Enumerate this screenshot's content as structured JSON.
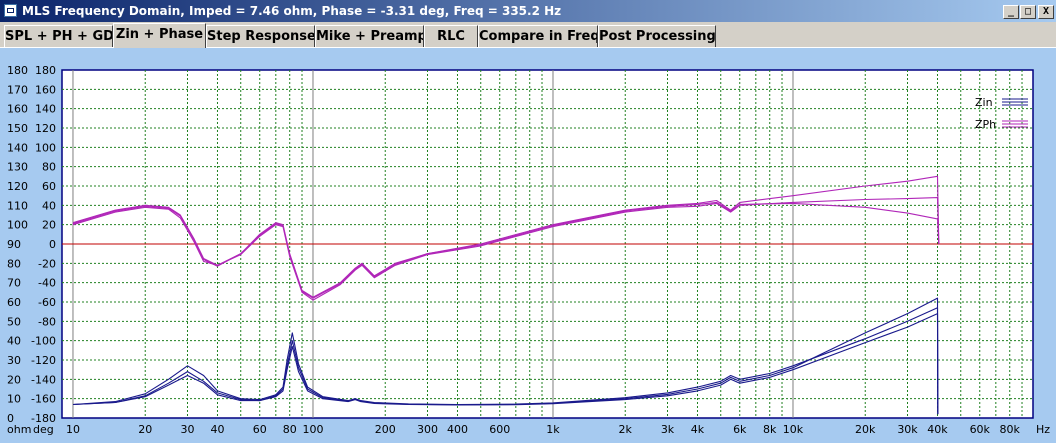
{
  "window": {
    "title": "MLS Frequency Domain, Imped = 7.46 ohm, Phase = -3.31 deg, Freq = 335.2 Hz",
    "minimize_glyph": "_",
    "maximize_glyph": "□",
    "close_glyph": "X"
  },
  "tabs": [
    {
      "label": "SPL + PH + GD"
    },
    {
      "label": "Zin + Phase",
      "active": true
    },
    {
      "label": "Step Response"
    },
    {
      "label": "Mike + Preamp"
    },
    {
      "label": "RLC"
    },
    {
      "label": "Compare in Freq"
    },
    {
      "label": "Post Processing"
    }
  ],
  "chart_data": {
    "type": "line",
    "x_scale": "log",
    "xlim": [
      9,
      100000
    ],
    "x_unit_label": "Hz",
    "x_ticks": [
      {
        "v": 10,
        "label": "10"
      },
      {
        "v": 20,
        "label": "20"
      },
      {
        "v": 30,
        "label": "30"
      },
      {
        "v": 40,
        "label": "40"
      },
      {
        "v": 60,
        "label": "60"
      },
      {
        "v": 80,
        "label": "80"
      },
      {
        "v": 100,
        "label": "100"
      },
      {
        "v": 200,
        "label": "200"
      },
      {
        "v": 300,
        "label": "300"
      },
      {
        "v": 400,
        "label": "400"
      },
      {
        "v": 600,
        "label": "600"
      },
      {
        "v": 1000,
        "label": "1k"
      },
      {
        "v": 2000,
        "label": "2k"
      },
      {
        "v": 3000,
        "label": "3k"
      },
      {
        "v": 4000,
        "label": "4k"
      },
      {
        "v": 6000,
        "label": "6k"
      },
      {
        "v": 8000,
        "label": "8k"
      },
      {
        "v": 10000,
        "label": "10k"
      },
      {
        "v": 20000,
        "label": "20k"
      },
      {
        "v": 30000,
        "label": "30k"
      },
      {
        "v": 40000,
        "label": "40k"
      },
      {
        "v": 60000,
        "label": "60k"
      },
      {
        "v": 80000,
        "label": "80k"
      }
    ],
    "left_axis": {
      "label": "ohm",
      "range": [
        0,
        180
      ],
      "ticks": [
        "0",
        "10",
        "20",
        "30",
        "40",
        "50",
        "60",
        "70",
        "80",
        "90",
        "100",
        "110",
        "120",
        "130",
        "140",
        "150",
        "160",
        "170",
        "180"
      ]
    },
    "right_axis": {
      "label": "deg",
      "range": [
        -180,
        180
      ],
      "ticks": [
        "-180",
        "-160",
        "-140",
        "-120",
        "-100",
        "-80",
        "-60",
        "-40",
        "-20",
        "0",
        "20",
        "40",
        "60",
        "80",
        "100",
        "120",
        "140",
        "160",
        "180"
      ]
    },
    "zero_phase_line": 90,
    "grid": true,
    "legend": {
      "position": "top-right",
      "entries": [
        {
          "name": "Zin",
          "color": "#1a1a8c"
        },
        {
          "name": "ZPh",
          "color": "#b026b8"
        }
      ]
    },
    "series": [
      {
        "name": "Zin",
        "axis": "left",
        "color": "#1a1a8c",
        "points": [
          [
            10,
            7
          ],
          [
            15,
            8
          ],
          [
            20,
            11
          ],
          [
            25,
            17
          ],
          [
            30,
            22
          ],
          [
            35,
            18
          ],
          [
            40,
            12
          ],
          [
            50,
            9
          ],
          [
            60,
            9
          ],
          [
            70,
            11
          ],
          [
            75,
            14
          ],
          [
            78,
            25
          ],
          [
            82,
            37
          ],
          [
            87,
            24
          ],
          [
            95,
            14
          ],
          [
            110,
            10
          ],
          [
            140,
            8.5
          ],
          [
            150,
            9.5
          ],
          [
            158,
            8.5
          ],
          [
            180,
            7.5
          ],
          [
            250,
            7
          ],
          [
            400,
            6.8
          ],
          [
            700,
            6.9
          ],
          [
            1000,
            7.4
          ],
          [
            2000,
            9.5
          ],
          [
            3000,
            11.5
          ],
          [
            4000,
            14
          ],
          [
            5000,
            17
          ],
          [
            5500,
            20
          ],
          [
            6000,
            18
          ],
          [
            8000,
            21
          ],
          [
            10000,
            25
          ],
          [
            20000,
            39
          ],
          [
            30000,
            47
          ],
          [
            40000,
            54
          ],
          [
            40100,
            2
          ]
        ]
      },
      {
        "name": "Zin",
        "axis": "left",
        "color": "#1a1a8c",
        "points": [
          [
            10,
            7
          ],
          [
            15,
            8.5
          ],
          [
            20,
            12.5
          ],
          [
            25,
            20
          ],
          [
            30,
            27
          ],
          [
            35,
            22
          ],
          [
            40,
            14
          ],
          [
            50,
            10
          ],
          [
            60,
            9.5
          ],
          [
            70,
            12
          ],
          [
            75,
            16
          ],
          [
            78,
            30
          ],
          [
            82,
            44
          ],
          [
            87,
            28
          ],
          [
            95,
            16
          ],
          [
            110,
            11
          ],
          [
            140,
            9
          ],
          [
            150,
            10
          ],
          [
            158,
            9
          ],
          [
            180,
            8
          ],
          [
            250,
            7.3
          ],
          [
            400,
            7
          ],
          [
            700,
            7.2
          ],
          [
            1000,
            7.8
          ],
          [
            2000,
            10.5
          ],
          [
            3000,
            13
          ],
          [
            4000,
            16
          ],
          [
            5000,
            19
          ],
          [
            5500,
            22
          ],
          [
            6000,
            20
          ],
          [
            8000,
            23
          ],
          [
            10000,
            27
          ],
          [
            20000,
            41
          ],
          [
            30000,
            50
          ],
          [
            40000,
            57
          ],
          [
            40100,
            2
          ]
        ]
      },
      {
        "name": "Zin",
        "axis": "left",
        "color": "#1a1a8c",
        "points": [
          [
            10,
            7
          ],
          [
            15,
            8
          ],
          [
            20,
            11.5
          ],
          [
            25,
            18
          ],
          [
            30,
            24
          ],
          [
            35,
            19
          ],
          [
            40,
            13
          ],
          [
            50,
            9.5
          ],
          [
            60,
            9
          ],
          [
            70,
            11.5
          ],
          [
            75,
            15
          ],
          [
            78,
            27
          ],
          [
            82,
            40
          ],
          [
            87,
            26
          ],
          [
            95,
            15
          ],
          [
            110,
            10.5
          ],
          [
            140,
            8.8
          ],
          [
            150,
            9.8
          ],
          [
            158,
            8.8
          ],
          [
            180,
            7.8
          ],
          [
            250,
            7.1
          ],
          [
            400,
            6.9
          ],
          [
            700,
            7
          ],
          [
            1000,
            7.6
          ],
          [
            2000,
            10
          ],
          [
            3000,
            12.2
          ],
          [
            4000,
            15
          ],
          [
            5000,
            18
          ],
          [
            5500,
            21
          ],
          [
            6000,
            19
          ],
          [
            8000,
            22
          ],
          [
            10000,
            26
          ],
          [
            20000,
            44
          ],
          [
            30000,
            54
          ],
          [
            40000,
            62
          ],
          [
            40100,
            2
          ]
        ]
      },
      {
        "name": "ZPh",
        "axis": "right",
        "color": "#b026b8",
        "points": [
          [
            10,
            22
          ],
          [
            15,
            35
          ],
          [
            20,
            40
          ],
          [
            25,
            38
          ],
          [
            28,
            30
          ],
          [
            32,
            5
          ],
          [
            35,
            -15
          ],
          [
            40,
            -22
          ],
          [
            50,
            -10
          ],
          [
            60,
            10
          ],
          [
            70,
            22
          ],
          [
            75,
            20
          ],
          [
            80,
            -10
          ],
          [
            90,
            -48
          ],
          [
            100,
            -55
          ],
          [
            130,
            -40
          ],
          [
            150,
            -25
          ],
          [
            160,
            -20
          ],
          [
            180,
            -33
          ],
          [
            220,
            -20
          ],
          [
            300,
            -10
          ],
          [
            500,
            0
          ],
          [
            1000,
            20
          ],
          [
            2000,
            35
          ],
          [
            3000,
            40
          ],
          [
            4000,
            42
          ],
          [
            4800,
            45
          ],
          [
            5500,
            35
          ],
          [
            6000,
            43
          ],
          [
            10000,
            50
          ],
          [
            20000,
            60
          ],
          [
            30000,
            65
          ],
          [
            40000,
            70
          ],
          [
            40500,
            0
          ]
        ]
      },
      {
        "name": "ZPh",
        "axis": "right",
        "color": "#b026b8",
        "points": [
          [
            10,
            20
          ],
          [
            15,
            33
          ],
          [
            20,
            38
          ],
          [
            25,
            36
          ],
          [
            28,
            27
          ],
          [
            32,
            2
          ],
          [
            35,
            -18
          ],
          [
            40,
            -22
          ],
          [
            50,
            -11
          ],
          [
            60,
            8
          ],
          [
            70,
            20
          ],
          [
            75,
            18
          ],
          [
            80,
            -13
          ],
          [
            90,
            -50
          ],
          [
            100,
            -58
          ],
          [
            130,
            -42
          ],
          [
            150,
            -27
          ],
          [
            160,
            -22
          ],
          [
            180,
            -35
          ],
          [
            220,
            -22
          ],
          [
            300,
            -11
          ],
          [
            500,
            -2
          ],
          [
            1000,
            18
          ],
          [
            2000,
            33
          ],
          [
            3000,
            38
          ],
          [
            4000,
            39
          ],
          [
            4800,
            42
          ],
          [
            5500,
            33
          ],
          [
            6000,
            40
          ],
          [
            10000,
            43
          ],
          [
            20000,
            46
          ],
          [
            30000,
            47
          ],
          [
            40000,
            48
          ],
          [
            40500,
            0
          ]
        ]
      },
      {
        "name": "ZPh",
        "axis": "right",
        "color": "#b026b8",
        "points": [
          [
            10,
            21
          ],
          [
            15,
            34
          ],
          [
            20,
            39
          ],
          [
            25,
            37
          ],
          [
            28,
            29
          ],
          [
            32,
            4
          ],
          [
            35,
            -16
          ],
          [
            40,
            -23
          ],
          [
            50,
            -10
          ],
          [
            60,
            9
          ],
          [
            70,
            21
          ],
          [
            75,
            19
          ],
          [
            80,
            -11
          ],
          [
            90,
            -49
          ],
          [
            100,
            -56
          ],
          [
            130,
            -41
          ],
          [
            150,
            -26
          ],
          [
            160,
            -21
          ],
          [
            180,
            -34
          ],
          [
            220,
            -21
          ],
          [
            300,
            -10
          ],
          [
            500,
            -1
          ],
          [
            1000,
            19
          ],
          [
            2000,
            34
          ],
          [
            3000,
            39
          ],
          [
            4000,
            41
          ],
          [
            4800,
            43
          ],
          [
            5500,
            34
          ],
          [
            6000,
            41
          ],
          [
            10000,
            42
          ],
          [
            20000,
            38
          ],
          [
            30000,
            32
          ],
          [
            40000,
            26
          ],
          [
            40500,
            0
          ]
        ]
      }
    ]
  }
}
